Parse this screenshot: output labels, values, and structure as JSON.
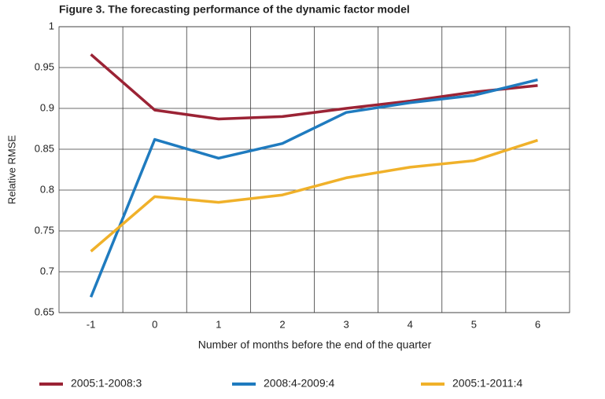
{
  "chart_data": {
    "type": "line",
    "title": "Figure 3. The forecasting performance of the dynamic factor model",
    "x_label": "Number of months before the end of the quarter",
    "y_label": "Relative RMSE",
    "categories": [
      "-1",
      "0",
      "1",
      "2",
      "3",
      "4",
      "5",
      "6"
    ],
    "series": [
      {
        "name": "2005:1-2008:3",
        "color": "#9b2335",
        "values": [
          0.966,
          0.898,
          0.887,
          0.89,
          0.9,
          0.909,
          0.92,
          0.928
        ]
      },
      {
        "name": "2008:4-2009:4",
        "color": "#1f7bbf",
        "values": [
          0.669,
          0.862,
          0.839,
          0.857,
          0.895,
          0.907,
          0.916,
          0.935
        ]
      },
      {
        "name": "2005:1-2011:4",
        "color": "#f0b12a",
        "values": [
          0.725,
          0.792,
          0.785,
          0.794,
          0.815,
          0.828,
          0.836,
          0.861
        ]
      }
    ],
    "ylim": [
      0.65,
      1
    ],
    "yticks": [
      0.65,
      0.7,
      0.75,
      0.8,
      0.85,
      0.9,
      0.95,
      1
    ],
    "grid": true,
    "legend": "bottom"
  }
}
